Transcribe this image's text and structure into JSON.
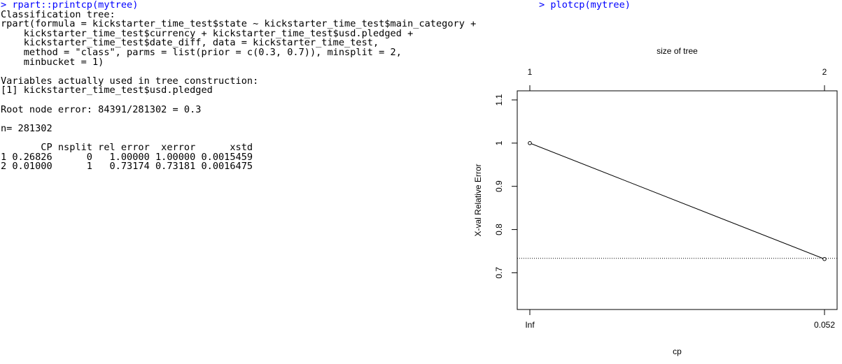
{
  "console": {
    "prompt": "> rpart::printcp(mytree)",
    "blocks": [
      [
        "Classification tree:",
        "rpart(formula = kickstarter_time_test$state ~ kickstarter_time_test$main_category +",
        "    kickstarter_time_test$currency + kickstarter_time_test$usd.pledged +",
        "    kickstarter_time_test$date_diff, data = kickstarter_time_test,",
        "    method = \"class\", parms = list(prior = c(0.3, 0.7)), minsplit = 2,",
        "    minbucket = 1)"
      ],
      [
        "Variables actually used in tree construction:",
        "[1] kickstarter_time_test$usd.pledged"
      ],
      [
        "Root node error: 84391/281302 = 0.3"
      ],
      [
        "n= 281302"
      ],
      [
        "       CP nsplit rel error  xerror      xstd",
        "1 0.26826      0   1.00000 1.00000 0.0015459",
        "2 0.01000      1   0.73174 0.73181 0.0016475"
      ]
    ],
    "plot_prompt": "> plotcp(mytree)"
  },
  "chart_data": {
    "type": "line",
    "top_axis_label": "size of tree",
    "top_categories": [
      "1",
      "2"
    ],
    "x_label": "cp",
    "y_label": "X-val Relative Error",
    "categories": [
      "Inf",
      "0.052"
    ],
    "values": [
      1.0,
      0.73181
    ],
    "color": "#000000",
    "reference_line": 0.7335,
    "ylim": [
      0.615,
      1.121
    ],
    "yticks": [
      0.7,
      0.8,
      0.9,
      1.0,
      1.1
    ]
  }
}
